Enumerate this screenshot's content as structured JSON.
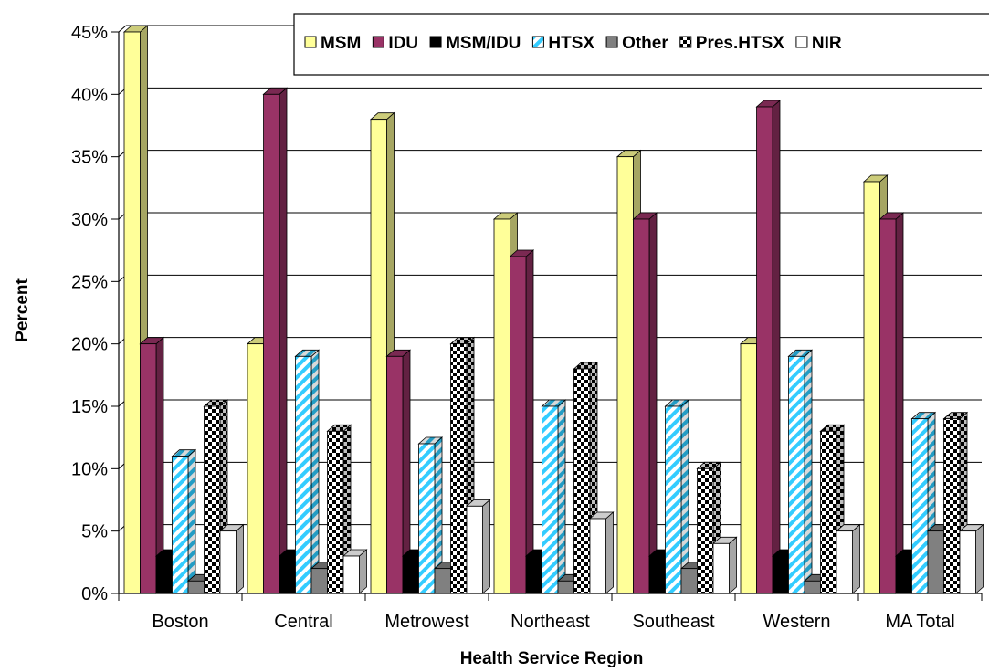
{
  "chart_data": {
    "type": "bar",
    "title": "",
    "xlabel": "Health Service Region",
    "ylabel": "Percent",
    "ylim": [
      0,
      45
    ],
    "yticks": [
      "0%",
      "5%",
      "10%",
      "15%",
      "20%",
      "25%",
      "30%",
      "35%",
      "40%",
      "45%"
    ],
    "ytick_values": [
      0,
      5,
      10,
      15,
      20,
      25,
      30,
      35,
      40,
      45
    ],
    "grid": true,
    "legend_position": "top-right",
    "categories": [
      "Boston",
      "Central",
      "Metrowest",
      "Northeast",
      "Southeast",
      "Western",
      "MA Total"
    ],
    "series": [
      {
        "name": "MSM",
        "color": "#ffff99",
        "pattern": "solid",
        "values": [
          45,
          20,
          38,
          30,
          35,
          20,
          33
        ]
      },
      {
        "name": "IDU",
        "color": "#993366",
        "pattern": "solid",
        "values": [
          20,
          40,
          19,
          27,
          30,
          39,
          30
        ]
      },
      {
        "name": "MSM/IDU",
        "color": "#000000",
        "pattern": "solid",
        "values": [
          3,
          3,
          3,
          3,
          3,
          3,
          3
        ]
      },
      {
        "name": "HTSX",
        "color": "#33ccff",
        "pattern": "diagonal-stripes",
        "values": [
          11,
          19,
          12,
          15,
          15,
          19,
          14
        ]
      },
      {
        "name": "Other",
        "color": "#808080",
        "pattern": "solid",
        "values": [
          1,
          2,
          2,
          1,
          2,
          1,
          5
        ]
      },
      {
        "name": "Pres.HTSX",
        "color": "#000000",
        "pattern": "checker",
        "values": [
          15,
          13,
          20,
          18,
          10,
          13,
          14
        ]
      },
      {
        "name": "NIR",
        "color": "#ffffff",
        "pattern": "solid",
        "values": [
          5,
          3,
          7,
          6,
          4,
          5,
          5
        ]
      }
    ]
  }
}
